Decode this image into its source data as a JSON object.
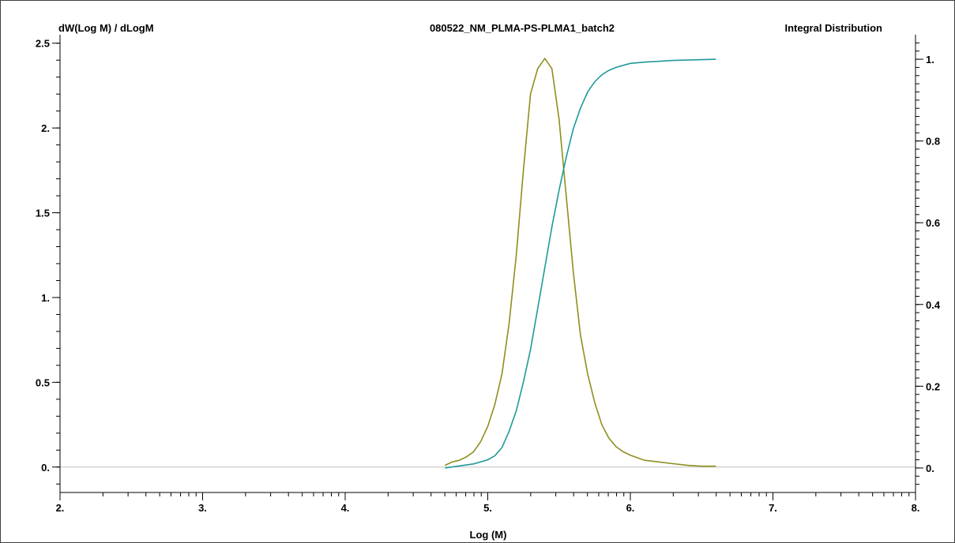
{
  "header": {
    "left_axis_title": "dW(Log M) / dLogM",
    "sample_name": "080522_NM_PLMA-PS-PLMA1_batch2",
    "right_axis_title": "Integral Distribution"
  },
  "colors": {
    "differential": "#8f8f1f",
    "integral": "#1f9a9a",
    "baseline": "#c0c0c0",
    "axis": "#000000"
  },
  "chart_data": {
    "type": "line",
    "title": "080522_NM_PLMA-PS-PLMA1_batch2",
    "xlabel": "Log (M)",
    "ylabel": "dW(Log M) / dLogM",
    "y2label": "Integral Distribution",
    "xlim": [
      2,
      8
    ],
    "ylim": [
      -0.15,
      2.55
    ],
    "y2lim": [
      -0.06,
      1.06
    ],
    "x_ticks": [
      2,
      3,
      4,
      5,
      6,
      7,
      8
    ],
    "x_tick_labels": [
      "2.",
      "3.",
      "4.",
      "5.",
      "6.",
      "7.",
      "8."
    ],
    "y_ticks": [
      0,
      0.5,
      1,
      1.5,
      2,
      2.5
    ],
    "y_tick_labels": [
      "0.",
      "0.5",
      "1.",
      "1.5",
      "2.",
      "2.5"
    ],
    "y2_ticks": [
      0,
      0.2,
      0.4,
      0.6,
      0.8,
      1
    ],
    "y2_tick_labels": [
      "0.",
      "0.2",
      "0.4",
      "0.6",
      "0.8",
      "1."
    ],
    "grid": false,
    "series": [
      {
        "axis": "left",
        "x": [
          4.7,
          4.75,
          4.8,
          4.85,
          4.9,
          4.95,
          5.0,
          5.05,
          5.1,
          5.15,
          5.2,
          5.25,
          5.3,
          5.35,
          5.4,
          5.45,
          5.5,
          5.55,
          5.6,
          5.65,
          5.7,
          5.75,
          5.8,
          5.85,
          5.9,
          5.95,
          6.0,
          6.1,
          6.2,
          6.3,
          6.4,
          6.5,
          6.6
        ],
        "y": [
          0.01,
          0.03,
          0.04,
          0.06,
          0.09,
          0.15,
          0.24,
          0.37,
          0.55,
          0.85,
          1.25,
          1.75,
          2.2,
          2.35,
          2.41,
          2.35,
          2.05,
          1.6,
          1.15,
          0.78,
          0.55,
          0.38,
          0.25,
          0.17,
          0.12,
          0.09,
          0.07,
          0.04,
          0.03,
          0.02,
          0.01,
          0.005,
          0.005
        ]
      },
      {
        "axis": "right",
        "x": [
          4.7,
          4.8,
          4.9,
          5.0,
          5.05,
          5.1,
          5.15,
          5.2,
          5.25,
          5.3,
          5.35,
          5.4,
          5.45,
          5.5,
          5.55,
          5.6,
          5.65,
          5.7,
          5.75,
          5.8,
          5.85,
          5.9,
          5.95,
          6.0,
          6.1,
          6.2,
          6.3,
          6.4,
          6.5,
          6.6
        ],
        "y": [
          0.0,
          0.005,
          0.01,
          0.02,
          0.03,
          0.05,
          0.09,
          0.14,
          0.21,
          0.29,
          0.39,
          0.49,
          0.59,
          0.68,
          0.76,
          0.83,
          0.88,
          0.92,
          0.945,
          0.962,
          0.973,
          0.98,
          0.985,
          0.99,
          0.993,
          0.995,
          0.997,
          0.998,
          0.999,
          1.0
        ]
      }
    ]
  }
}
